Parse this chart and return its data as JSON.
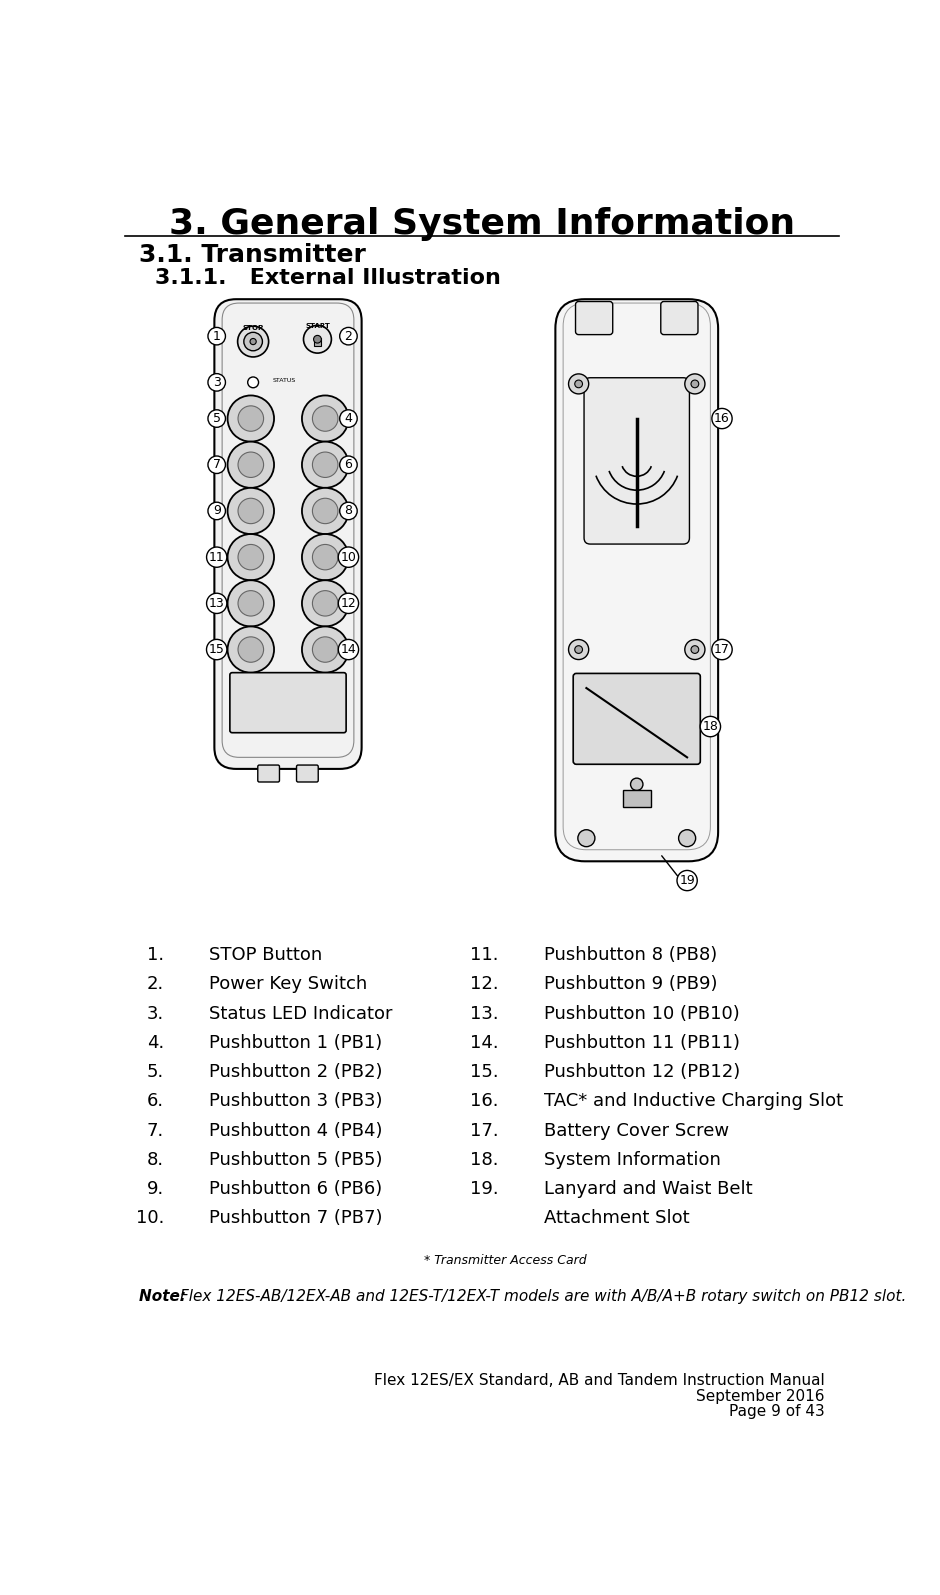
{
  "title": "3. General System Information",
  "section1": "3.1. Transmitter",
  "section2": "3.1.1.   External Illustration",
  "left_items": [
    [
      "1.",
      "STOP Button"
    ],
    [
      "2.",
      "Power Key Switch"
    ],
    [
      "3.",
      "Status LED Indicator"
    ],
    [
      "4.",
      "Pushbutton 1 (PB1)"
    ],
    [
      "5.",
      "Pushbutton 2 (PB2)"
    ],
    [
      "6.",
      "Pushbutton 3 (PB3)"
    ],
    [
      "7.",
      "Pushbutton 4 (PB4)"
    ],
    [
      "8.",
      "Pushbutton 5 (PB5)"
    ],
    [
      "9.",
      "Pushbutton 6 (PB6)"
    ],
    [
      "10.",
      "Pushbutton 7 (PB7)"
    ]
  ],
  "right_items": [
    [
      "11.",
      "Pushbutton 8 (PB8)"
    ],
    [
      "12.",
      "Pushbutton 9 (PB9)"
    ],
    [
      "13.",
      "Pushbutton 10 (PB10)"
    ],
    [
      "14.",
      "Pushbutton 11 (PB11)"
    ],
    [
      "15.",
      "Pushbutton 12 (PB12)"
    ],
    [
      "16.",
      "TAC* and Inductive Charging Slot"
    ],
    [
      "17.",
      "Battery Cover Screw"
    ],
    [
      "18.",
      "System Information"
    ],
    [
      "19.",
      "Lanyard and Waist Belt"
    ],
    [
      "",
      "Attachment Slot"
    ]
  ],
  "footnote": "* Transmitter Access Card",
  "note_bold": "Note:  ",
  "note_text": "Flex 12ES-AB/12EX-AB and 12ES-T/12EX-T models are with A/B/A+B rotary switch on PB12 slot.",
  "footer_line1": "Flex 12ES/EX Standard, AB and Tandem Instruction Manual",
  "footer_line2": "September 2016",
  "footer_line3": "Page 9 of 43",
  "bg_color": "#ffffff",
  "text_color": "#000000",
  "title_fontsize": 26,
  "section_fontsize": 18,
  "subsection_fontsize": 16,
  "body_fontsize": 13,
  "note_fontsize": 11,
  "footer_fontsize": 11
}
